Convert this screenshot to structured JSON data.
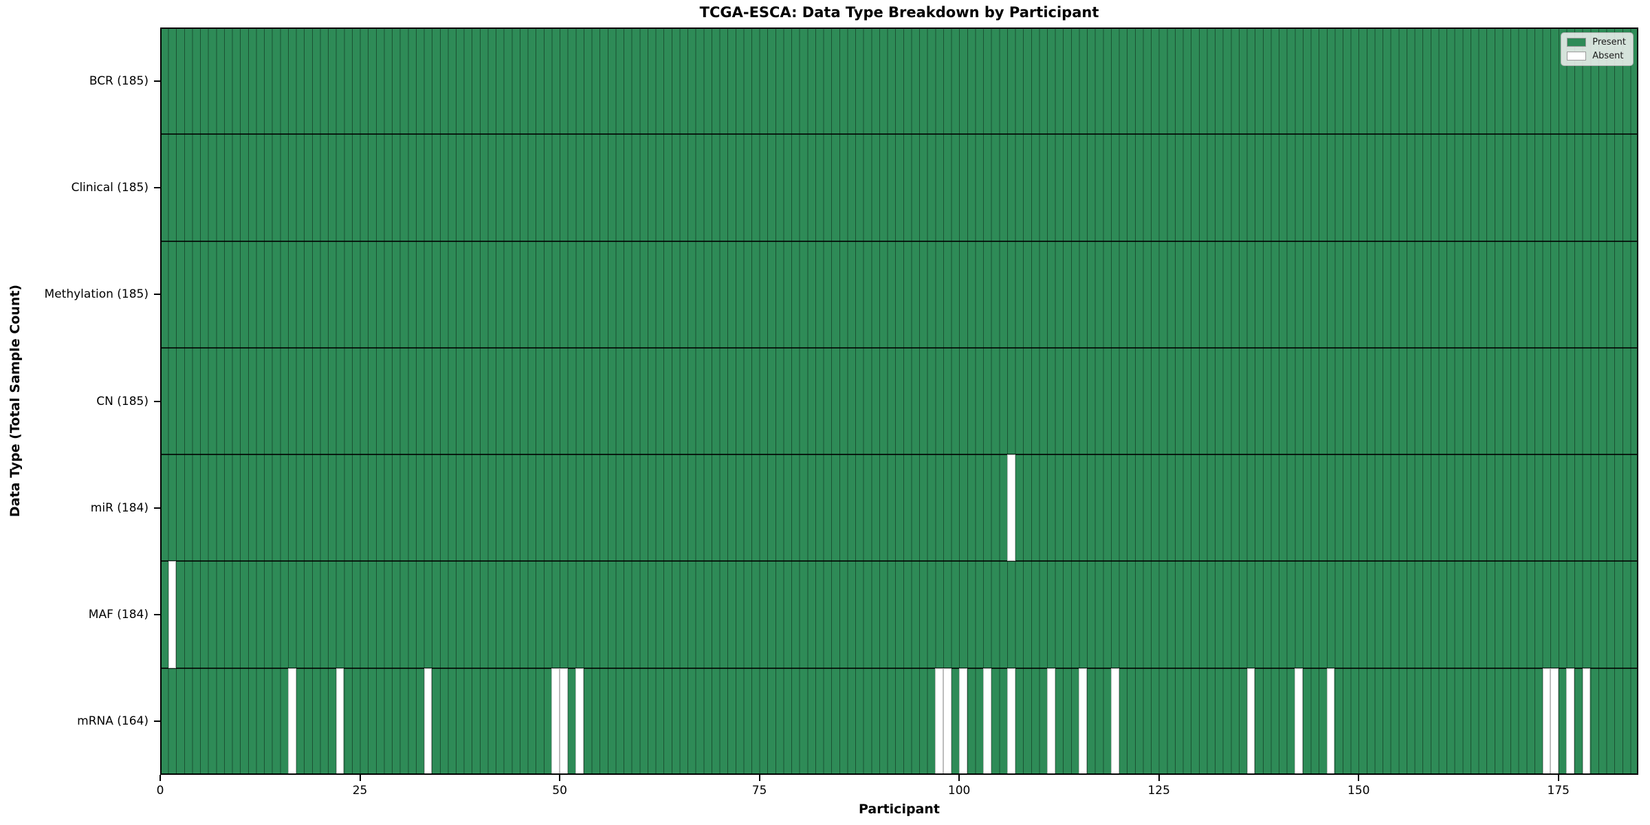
{
  "chart_data": {
    "type": "heatmap",
    "title": "TCGA-ESCA: Data Type Breakdown by Participant",
    "xlabel": "Participant",
    "ylabel": "Data Type (Total Sample Count)",
    "n_participants": 185,
    "x_ticks": [
      0,
      25,
      50,
      75,
      100,
      125,
      150,
      175
    ],
    "rows": [
      {
        "label": "BCR (185)",
        "total": 185,
        "absent": []
      },
      {
        "label": "Clinical (185)",
        "total": 185,
        "absent": []
      },
      {
        "label": "Methylation (185)",
        "total": 185,
        "absent": []
      },
      {
        "label": "CN (185)",
        "total": 185,
        "absent": []
      },
      {
        "label": "miR (184)",
        "total": 184,
        "absent": [
          106
        ]
      },
      {
        "label": "MAF (184)",
        "total": 184,
        "absent": [
          1
        ]
      },
      {
        "label": "mRNA (164)",
        "total": 164,
        "absent": [
          16,
          22,
          33,
          49,
          50,
          52,
          97,
          98,
          100,
          103,
          106,
          111,
          115,
          119,
          136,
          142,
          146,
          173,
          174,
          176,
          178
        ]
      }
    ],
    "legend": [
      {
        "label": "Present",
        "color": "#2e8b57"
      },
      {
        "label": "Absent",
        "color": "#ffffff"
      }
    ],
    "colors": {
      "present": "#2e8b57",
      "absent": "#ffffff",
      "bar_edge": "rgba(0,0,0,0.42)",
      "row_separator": "rgba(0,0,0,0.8)",
      "absent_edge": "#bdbdbd"
    }
  }
}
